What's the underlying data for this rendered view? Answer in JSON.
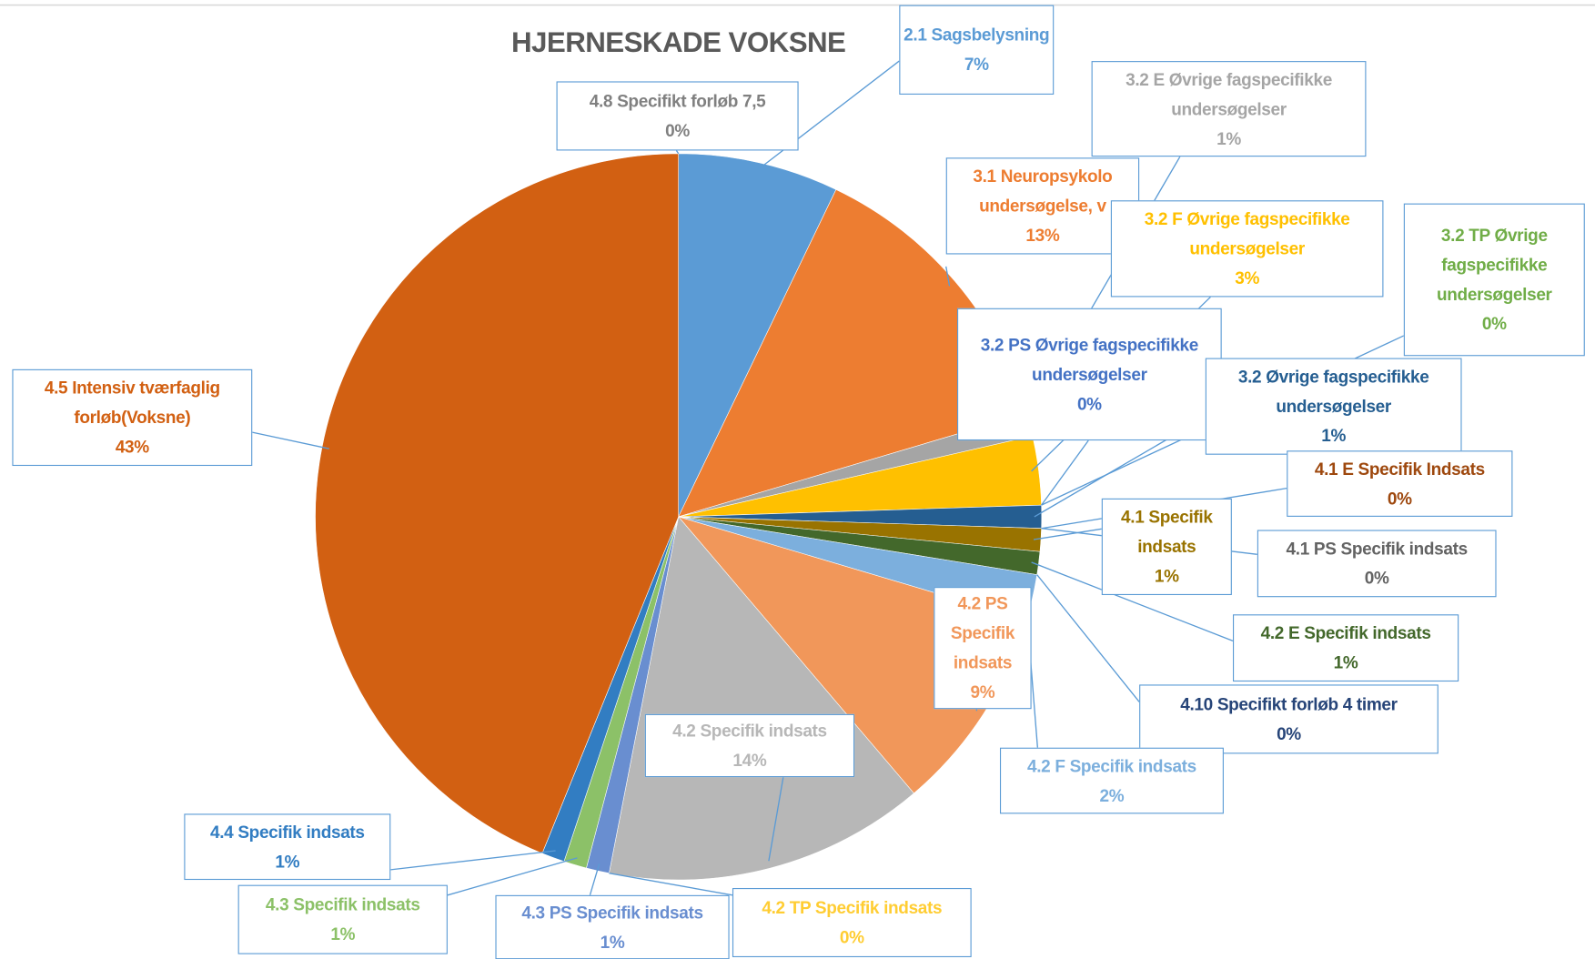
{
  "chart_data": {
    "type": "pie",
    "title": "HJERNESKADE VOKSNE",
    "categories": [
      "4.8 Specifikt forløb 7,5",
      "2.1 Sagsbelysning",
      "3.1 Neuropsykolo undersøgelse, v",
      "3.2 E Øvrige fagspecifikke undersøgelser",
      "3.2 F Øvrige fagspecifikke undersøgelser",
      "3.2 PS Øvrige fagspecifikke undersøgelser",
      "3.2 TP Øvrige fagspecifikke undersøgelser",
      "3.2 Øvrige fagspecifikke undersøgelser",
      "4.1 E Specifik Indsats",
      "4.1 PS Specifik indsats",
      "4.1 Specifik indsats",
      "4.2 E Specifik indsats",
      "4.10 Specifikt forløb 4 timer",
      "4.2 F Specifik indsats",
      "4.2 PS Specifik indsats",
      "4.2 Specifik indsats",
      "4.2 TP Specifik indsats",
      "4.3 PS Specifik indsats",
      "4.3 Specifik indsats",
      "4.4 Specifik indsats",
      "4.5 Intensiv tværfaglig forløb(Voksne)"
    ],
    "values": [
      0,
      7,
      13,
      1,
      3,
      0,
      0,
      1,
      0,
      0,
      1,
      1,
      0,
      2,
      9,
      14,
      0,
      1,
      1,
      1,
      43
    ],
    "value_labels": [
      "0%",
      "7%",
      "13%",
      "1%",
      "3%",
      "0%",
      "0%",
      "1%",
      "0%",
      "0%",
      "1%",
      "1%",
      "0%",
      "2%",
      "9%",
      "14%",
      "0%",
      "1%",
      "1%",
      "1%",
      "43%"
    ],
    "colors": [
      "#808080",
      "#5b9bd5",
      "#ed7d31",
      "#a5a5a5",
      "#ffc000",
      "#4472c4",
      "#70ad47",
      "#255e91",
      "#9e480e",
      "#636363",
      "#997300",
      "#43682b",
      "#264478",
      "#7cafdd",
      "#f1975a",
      "#b7b7b7",
      "#ffcd33",
      "#698ed0",
      "#8cc168",
      "#327dc2",
      "#d26012"
    ]
  }
}
